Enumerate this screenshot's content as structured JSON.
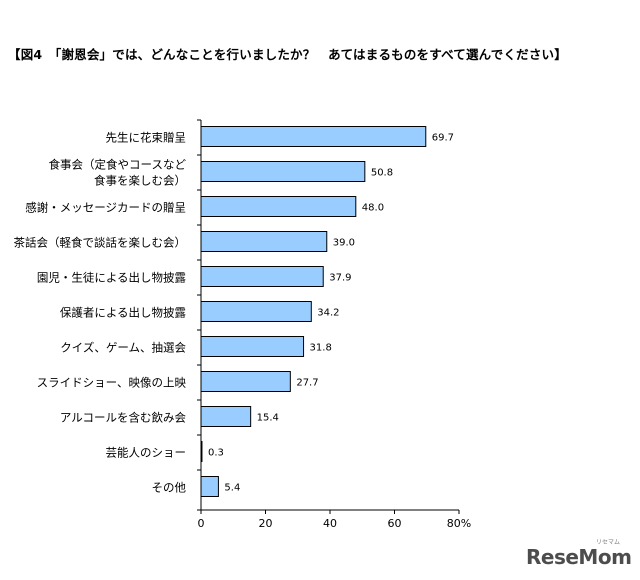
{
  "title": "【図4　「謝恩会」では、どんなことを行いましたか？　あてはまるものをすべて選んでください】",
  "chart_data": {
    "type": "bar",
    "orientation": "horizontal",
    "categories": [
      [
        "先生に花束贈呈"
      ],
      [
        "食事会（定食やコースなど",
        "食事を楽しむ会）"
      ],
      [
        "感謝・メッセージカードの贈呈"
      ],
      [
        "茶話会（軽食で談話を楽しむ会）"
      ],
      [
        "園児・生徒による出し物披露"
      ],
      [
        "保護者による出し物披露"
      ],
      [
        "クイズ、ゲーム、抽選会"
      ],
      [
        "スライドショー、映像の上映"
      ],
      [
        "アルコールを含む飲み会"
      ],
      [
        "芸能人のショー"
      ],
      [
        "その他"
      ]
    ],
    "values": [
      69.7,
      50.8,
      48.0,
      39.0,
      37.9,
      34.2,
      31.8,
      27.7,
      15.4,
      0.3,
      5.4
    ],
    "value_labels": [
      "69.7",
      "50.8",
      "48.0",
      "39.0",
      "37.9",
      "34.2",
      "31.8",
      "27.7",
      "15.4",
      "0.3",
      "5.4"
    ],
    "xlim": [
      0,
      80
    ],
    "x_ticks": [
      "0",
      "20",
      "40",
      "60",
      "80%"
    ],
    "grid": false,
    "bar_color": "#99ccff",
    "bar_edge_color": "#000000"
  },
  "logo": {
    "text": "ReseMom",
    "ruby": "リセマム"
  }
}
